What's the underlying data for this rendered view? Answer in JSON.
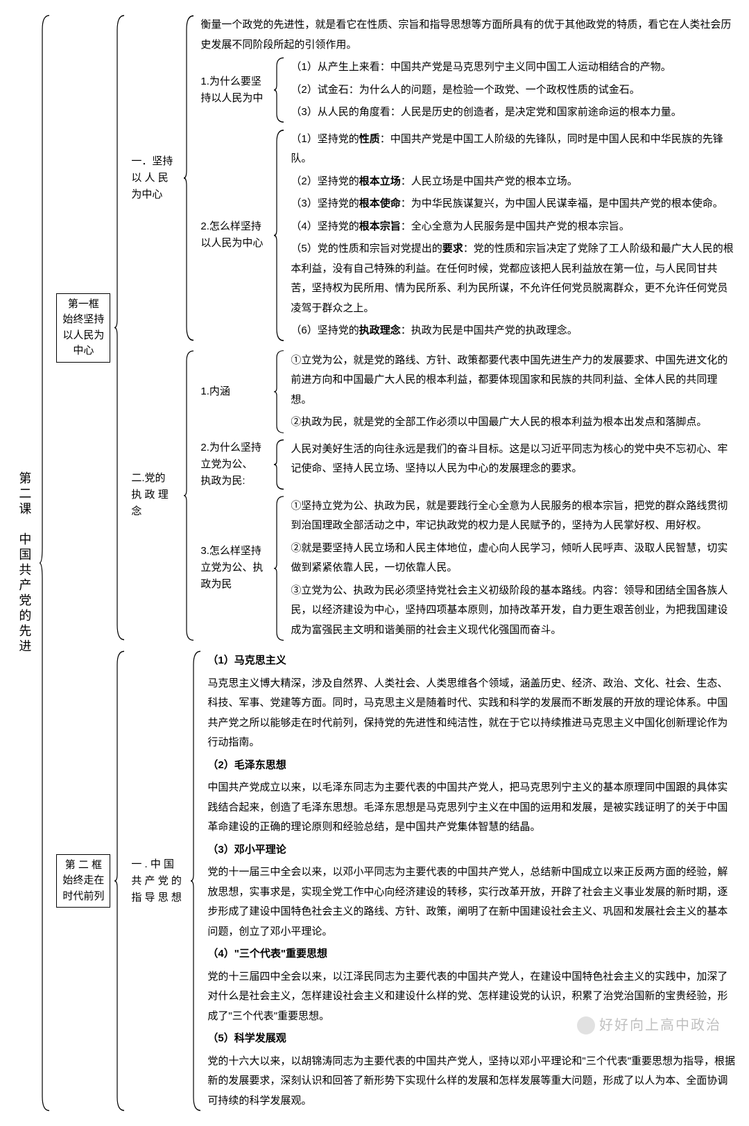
{
  "root_label": "第二课　中国共产党的先进",
  "frame1": {
    "label": "第一框\n始终坚持\n以人民为\n中心",
    "sec1": {
      "label": "一．坚持\n以 人 民\n为中心",
      "intro": "衡量一个政党的先进性，就是看它在性质、宗旨和指导思想等方面所具有的优于其他政党的特质，看它在人类社会历史发展不同阶段所起的引领作用。",
      "q1": {
        "label": "1.为什么要坚\n持以人民为中",
        "items": [
          "（1）从产生上来看：中国共产党是马克思列宁主义同中国工人运动相结合的产物。",
          "（2）试金石：为什么人的问题，是检验一个政党、一个政权性质的试金石。",
          "（3）从人民的角度看：人民是历史的创造者，是决定党和国家前途命运的根本力量。"
        ]
      },
      "q2": {
        "label": "2.怎么样坚持\n以人民为中心",
        "items": [
          "（1）坚持党的<b>性质</b>：中国共产党是中国工人阶级的先锋队，同时是中国人民和中华民族的先锋队。",
          "（2）坚持党的<b>根本立场</b>：人民立场是中国共产党的根本立场。",
          "（3）坚持党的<b>根本使命</b>：为中华民族谋复兴，为中国人民谋幸福，是中国共产党的根本使命。",
          "（4）坚持党的<b>根本宗旨</b>：全心全意为人民服务是中国共产党的根本宗旨。",
          "（5）党的性质和宗旨对党提出的<b>要求</b>：党的性质和宗旨决定了党除了工人阶级和最广大人民的根本利益，没有自己特殊的利益。在任何时候，党都应该把人民利益放在第一位，与人民同甘共苦，坚持权为民所用、情为民所系、利为民所谋，不允许任何党员脱离群众，更不允许任何党员凌驾于群众之上。",
          "（6）坚持党的<b>执政理念</b>：执政为民是中国共产党的执政理念。"
        ]
      }
    },
    "sec2": {
      "label": "二.党的\n执 政 理\n念",
      "q1": {
        "label": "1.内涵",
        "items": [
          "①立党为公，就是党的路线、方针、政策都要代表中国先进生产力的发展要求、中国先进文化的前进方向和中国最广大人民的根本利益，都要体现国家和民族的共同利益、全体人民的共同理想。",
          "②执政为民，就是党的全部工作必须以中国最广大人民的根本利益为根本出发点和落脚点。"
        ]
      },
      "q2": {
        "label": "2.为什么坚持\n立党为公、\n执政为民:",
        "text": "人民对美好生活的向往永远是我们的奋斗目标。这是以习近平同志为核心的党中央不忘初心、牢记使命、坚持人民立场、坚持以人民为中心的发展理念的要求。"
      },
      "q3": {
        "label": "3.怎么样坚持\n立党为公、执\n政为民",
        "items": [
          "①坚持立党为公、执政为民，就是要践行全心全意为人民服务的根本宗旨，把党的群众路线贯彻到治国理政全部活动之中，牢记执政党的权力是人民赋予的，坚持为人民掌好权、用好权。",
          "②就是要坚持人民立场和人民主体地位，虚心向人民学习，倾听人民呼声、汲取人民智慧，切实做到紧紧依靠人民，一切依靠人民。",
          "③立党为公、执政为民必须坚持党社会主义初级阶段的基本路线。内容：领导和团结全国各族人民，以经济建设为中心，坚持四项基本原则，加持改革开发，自力更生艰苦创业，为把我国建设成为富强民主文明和谐美丽的社会主义现代化强国而奋斗。"
        ]
      }
    }
  },
  "frame2": {
    "label": "第 二 框\n始终走在\n时代前列",
    "sec1": {
      "label": "一 . 中 国\n共 产 党 的\n指 导 思 想",
      "h1": "（1）马克思主义",
      "p1": "马克思主义博大精深，涉及自然界、人类社会、人类思维各个领域，涵盖历史、经济、政治、文化、社会、生态、科技、军事、党建等方面。同时，马克思主义是随着时代、实践和科学的发展而不断发展的开放的理论体系。中国共产党之所以能够走在时代前列，保持党的先进性和纯洁性，就在于它以持续推进马克思主义中国化创新理论作为行动指南。",
      "h2": "（2）毛泽东思想",
      "p2": "中国共产党成立以来，以毛泽东同志为主要代表的中国共产党人，把马克思列宁主义的基本原理同中国跟的具体实践结合起来，创造了毛泽东思想。毛泽东思想是马克思列宁主义在中国的运用和发展，是被实践证明了的关于中国革命建设的正确的理论原则和经验总结，是中国共产党集体智慧的结晶。",
      "h3": "（3）邓小平理论",
      "p3": "党的十一届三中全会以来，以邓小平同志为主要代表的中国共产党人，总结新中国成立以来正反两方面的经验，解放思想，实事求是，实现全党工作中心向经济建设的转移，实行改革开放，开辟了社会主义事业发展的新时期，逐步形成了建设中国特色社会主义的路线、方针、政策，阐明了在新中国建设社会主义、巩固和发展社会主义的基本问题，创立了邓小平理论。",
      "h4": "（4）\"三个代表\"重要思想",
      "p4": "党的十三届四中全会以来，以江泽民同志为主要代表的中国共产党人，在建设中国特色社会主义的实践中，加深了对什么是社会主义，怎样建设社会主义和建设什么样的党、怎样建设党的认识，积累了治党治国新的宝贵经验，形成了\"三个代表\"重要思想。",
      "h5": "（5）科学发展观",
      "p5": "党的十六大以来，以胡锦涛同志为主要代表的中国共产党人，坚持以邓小平理论和\"三个代表\"重要思想为指导，根据新的发展要求，深刻认识和回答了新形势下实现什么样的发展和怎样发展等重大问题，形成了以人为本、全面协调可持续的科学发展观。"
    }
  },
  "watermark": "好好向上高中政治",
  "colors": {
    "text": "#000000",
    "bg": "#ffffff",
    "brace": "#000000"
  }
}
